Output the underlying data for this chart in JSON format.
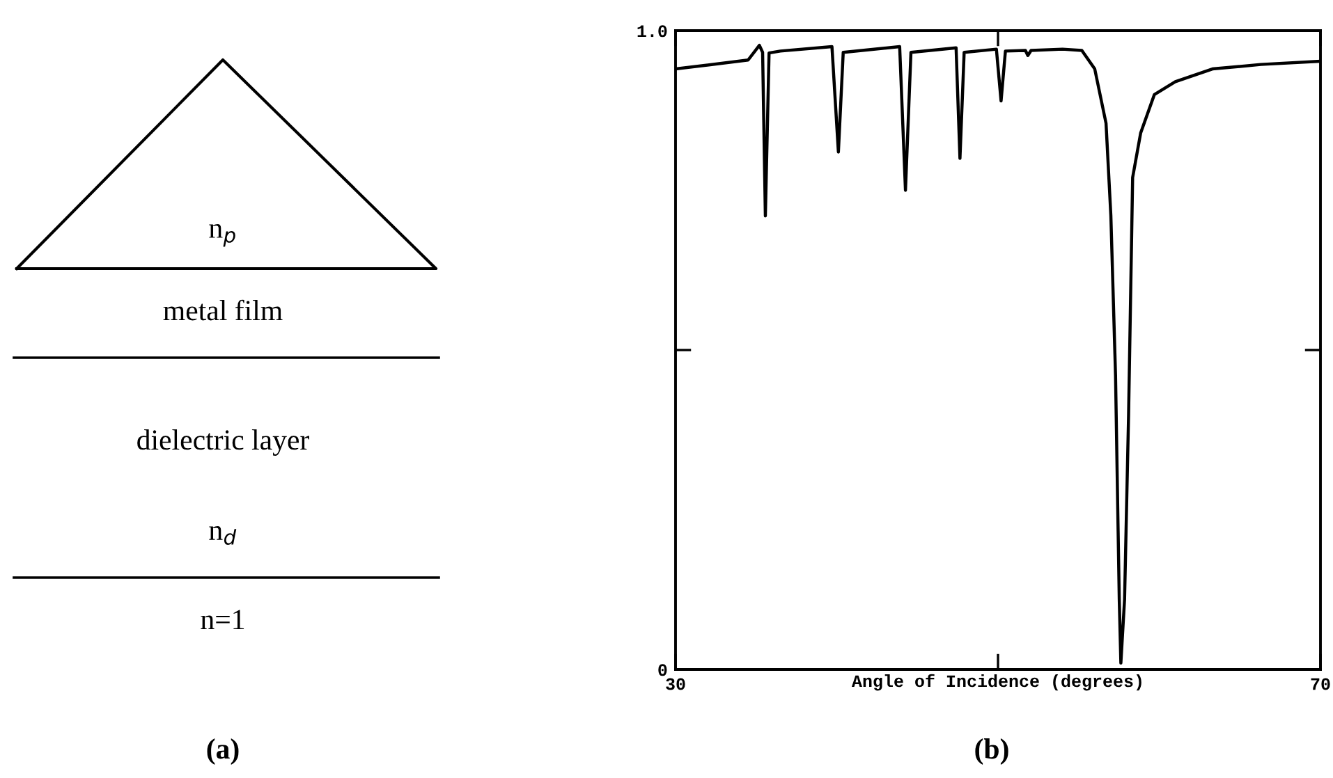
{
  "chart_data": [
    {
      "type": "other",
      "annotations": [
        "n$_{p}$",
        "metal film",
        "dielectric layer",
        "n$_{d}$",
        "n=1",
        "(a)"
      ]
    },
    {
      "type": "line",
      "xlabel": "Angle of Incidence (degrees)",
      "annotations": [
        "(b)"
      ],
      "xlim": [
        30,
        70
      ],
      "ylim": [
        0,
        1.0
      ],
      "xticks": [
        30,
        {
          "value": 50,
          "label": null
        },
        70
      ],
      "yticks": [
        0,
        {
          "value": 0.5,
          "label": null
        },
        {
          "value": 1.0,
          "label": "1.0"
        }
      ],
      "grid": false,
      "marker": "none",
      "line_style": "solid",
      "series": [
        {
          "color": "#000000",
          "x": [
            30.0,
            34.5,
            35.2,
            35.4,
            35.57,
            35.8,
            36.5,
            39.7,
            40.1,
            40.4,
            43.9,
            44.26,
            44.6,
            47.4,
            47.64,
            47.9,
            49.9,
            50.19,
            50.46,
            51.7,
            51.85,
            52.05,
            54.0,
            55.2,
            56.0,
            56.7,
            57.0,
            57.29,
            57.52,
            57.62,
            57.85,
            58.1,
            58.35,
            58.85,
            59.7,
            61.0,
            63.3,
            66.3,
            70.0
          ],
          "values": [
            0.94,
            0.954,
            0.977,
            0.966,
            0.71,
            0.965,
            0.968,
            0.975,
            0.81,
            0.966,
            0.975,
            0.75,
            0.966,
            0.973,
            0.8,
            0.966,
            0.971,
            0.89,
            0.968,
            0.969,
            0.961,
            0.969,
            0.971,
            0.969,
            0.94,
            0.855,
            0.71,
            0.46,
            0.11,
            0.01,
            0.11,
            0.4,
            0.77,
            0.84,
            0.9,
            0.92,
            0.94,
            0.947,
            0.952
          ]
        }
      ]
    }
  ]
}
